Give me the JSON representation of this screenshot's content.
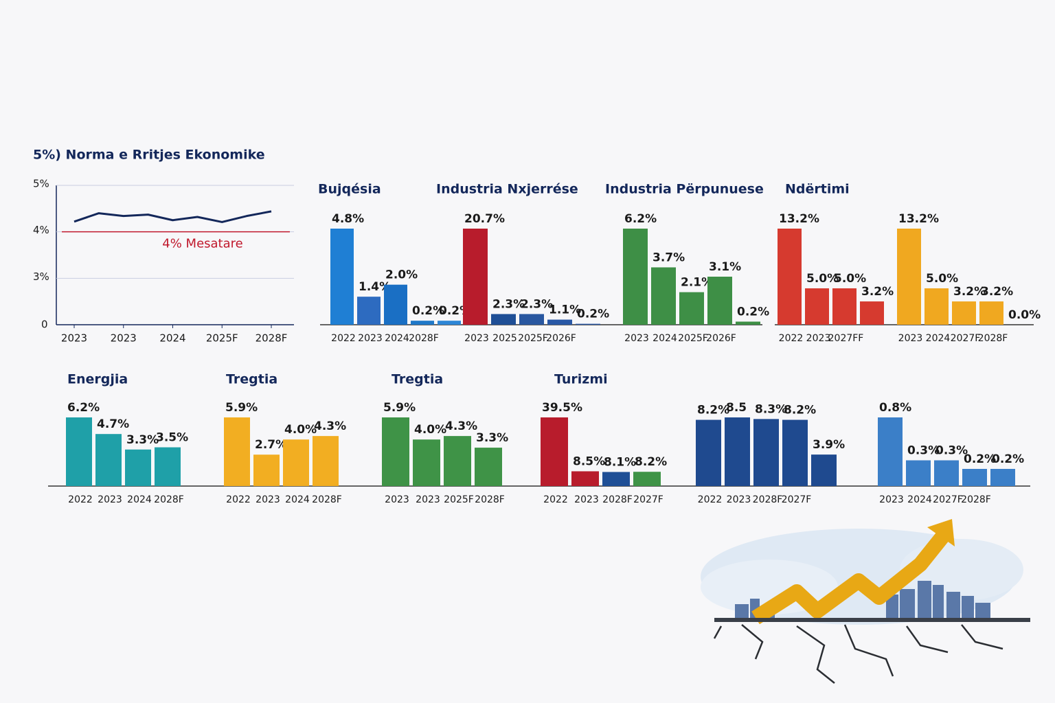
{
  "chart_data": [
    {
      "type": "line",
      "title": "5%) Norma e Rritjes Ekonomike",
      "categories": [
        "2023",
        null,
        "2023",
        null,
        "2024",
        null,
        "2025F",
        null,
        "2028F"
      ],
      "values": [
        4.22,
        4.4,
        4.34,
        4.37,
        4.25,
        4.32,
        4.21,
        4.34,
        4.44
      ],
      "color": "#13275a",
      "ylim": [
        2,
        5
      ],
      "yticks": [
        {
          "value": 5,
          "label": "5%"
        },
        {
          "value": 4,
          "label": "4%"
        },
        {
          "value": 3,
          "label": "3%"
        }
      ],
      "y_origin_label": "0",
      "reference": {
        "value": 4,
        "label": "4% Mesatare",
        "color": "#c0182c"
      },
      "grid": true
    },
    {
      "type": "bar",
      "title": "Bujqésia",
      "categories": [
        "2022",
        "2023",
        "2024",
        "2028F",
        null
      ],
      "values": [
        4.8,
        1.4,
        2.0,
        0.2,
        0.2
      ],
      "value_labels": [
        "4.8%",
        "1.4%",
        "2.0%",
        "0.2%",
        "0.2%"
      ],
      "colors": [
        "#1f7fd4",
        "#2d6bc0",
        "#1a6fc4",
        "#1f78c8",
        "#2d86d6"
      ]
    },
    {
      "type": "bar",
      "title": "Industria Nxjerrése",
      "categories": [
        "2023",
        "2025",
        "2025F",
        "2026F",
        null
      ],
      "values": [
        20.7,
        2.3,
        2.3,
        1.1,
        0.2
      ],
      "value_labels": [
        "20.7%",
        "2.3%",
        "2.3%",
        "1.1%",
        "0.2%"
      ],
      "colors": [
        "#b81c2c",
        "#1f4f96",
        "#2957a0",
        "#2958a6",
        "#2958a6"
      ],
      "value_label_colors": [
        "#c0182c",
        "#1a1a1a",
        "#1a1a1a",
        "#1a1a1a",
        "#1a1a1a"
      ]
    },
    {
      "type": "bar",
      "title": "Industria Përpunuese",
      "categories": [
        "2023",
        "2024",
        "2025F",
        "2026F",
        null
      ],
      "values": [
        6.2,
        3.7,
        2.1,
        3.1,
        0.2
      ],
      "value_labels": [
        "6.2%",
        "3.7%",
        "2.1%",
        "3.1%",
        "0.2%"
      ],
      "colors": [
        "#3e8f46",
        "#3e8f46",
        "#3e8f46",
        "#3e8f46",
        "#3e8f46"
      ]
    },
    {
      "type": "bar",
      "title": "Ndërtimi",
      "categories": [
        "2022",
        "2023",
        "2027FF",
        null
      ],
      "values": [
        13.2,
        5.0,
        5.0,
        3.2
      ],
      "value_labels": [
        "13.2%",
        "5.0%",
        "5.0%",
        "3.2%"
      ],
      "colors": [
        "#d63a2f",
        "#d63a2f",
        "#d63a2f",
        "#d63a2f"
      ],
      "value_label_colors": [
        "#c0182c",
        "#1a1a1a",
        "#1a1a1a",
        "#1a1a1a"
      ]
    },
    {
      "type": "bar",
      "categories": [
        "2023",
        "2024",
        "2027F",
        "2028F",
        null
      ],
      "values": [
        13.2,
        5.0,
        3.2,
        3.2,
        0.0
      ],
      "value_labels": [
        "13.2%",
        "5.0%",
        "3.2%",
        "3.2%",
        "0.0%"
      ],
      "colors": [
        "#f0a820",
        "#f0a820",
        "#f0a820",
        "#f0a820",
        "#f0a820"
      ],
      "value_label_colors": [
        "#c0182c",
        "#1a1a1a",
        "#1a1a1a",
        "#1a1a1a",
        "#1a1a1a"
      ]
    },
    {
      "type": "bar",
      "title": "Energjia",
      "categories": [
        "2022",
        "2023",
        "2024",
        "2028F"
      ],
      "values": [
        6.2,
        4.7,
        3.3,
        3.5
      ],
      "value_labels": [
        "6.2%",
        "4.7%",
        "3.3%",
        "3.5%"
      ],
      "colors": [
        "#1fa0a8",
        "#1fa0a8",
        "#1fa0a8",
        "#1fa0a8"
      ]
    },
    {
      "type": "bar",
      "title": "Tregtia",
      "categories": [
        "2022",
        "2023",
        "2024",
        "2028F"
      ],
      "values": [
        5.9,
        2.7,
        4.0,
        4.3
      ],
      "value_labels": [
        "5.9%",
        "2.7%",
        "4.0%",
        "4.3%"
      ],
      "colors": [
        "#f2ae22",
        "#f2ae22",
        "#f2ae22",
        "#f2ae22"
      ]
    },
    {
      "type": "bar",
      "title": "Tregtia",
      "categories": [
        "2023",
        "2023",
        "2025F",
        "2028F"
      ],
      "values": [
        5.9,
        4.0,
        4.3,
        3.3
      ],
      "value_labels": [
        "5.9%",
        "4.0%",
        "4.3%",
        "3.3%"
      ],
      "colors": [
        "#3f9347",
        "#3f9347",
        "#3f9347",
        "#3f9347"
      ]
    },
    {
      "type": "bar",
      "title": "Turizmi",
      "categories": [
        "2022",
        "2023",
        "2028F",
        "2027F"
      ],
      "values": [
        39.5,
        8.5,
        8.1,
        8.2
      ],
      "value_labels": [
        "39.5%",
        "8.5%",
        "8.1%",
        "8.2%"
      ],
      "colors": [
        "#b81c2c",
        "#b81c2c",
        "#1f4f96",
        "#3f9347"
      ],
      "value_label_colors": [
        "#c0182c",
        "#1a1a1a",
        "#1a1a1a",
        "#1a1a1a"
      ]
    },
    {
      "type": "bar",
      "categories": [
        "2022",
        "2023",
        "2028F",
        "2027F",
        null
      ],
      "values": [
        8.2,
        8.5,
        8.3,
        8.2,
        3.9
      ],
      "value_labels": [
        "8.2%",
        "8.5",
        "8.3%",
        "8.2%",
        "3.9%"
      ],
      "colors": [
        "#1f4a8f",
        "#1f4a8f",
        "#1f4a8f",
        "#1f4a8f",
        "#1f4a8f"
      ]
    },
    {
      "type": "bar",
      "categories": [
        "2023",
        "2024",
        "2027F",
        "2028F",
        null
      ],
      "values": [
        0.8,
        0.3,
        0.3,
        0.2,
        0.2
      ],
      "value_labels": [
        "0.8%",
        "0.3%",
        "0.3%",
        "0.2%",
        "0.2%"
      ],
      "colors": [
        "#3b7fc8",
        "#3b7fc8",
        "#3b7fc8",
        "#3b7fc8",
        "#3b7fc8"
      ]
    }
  ]
}
